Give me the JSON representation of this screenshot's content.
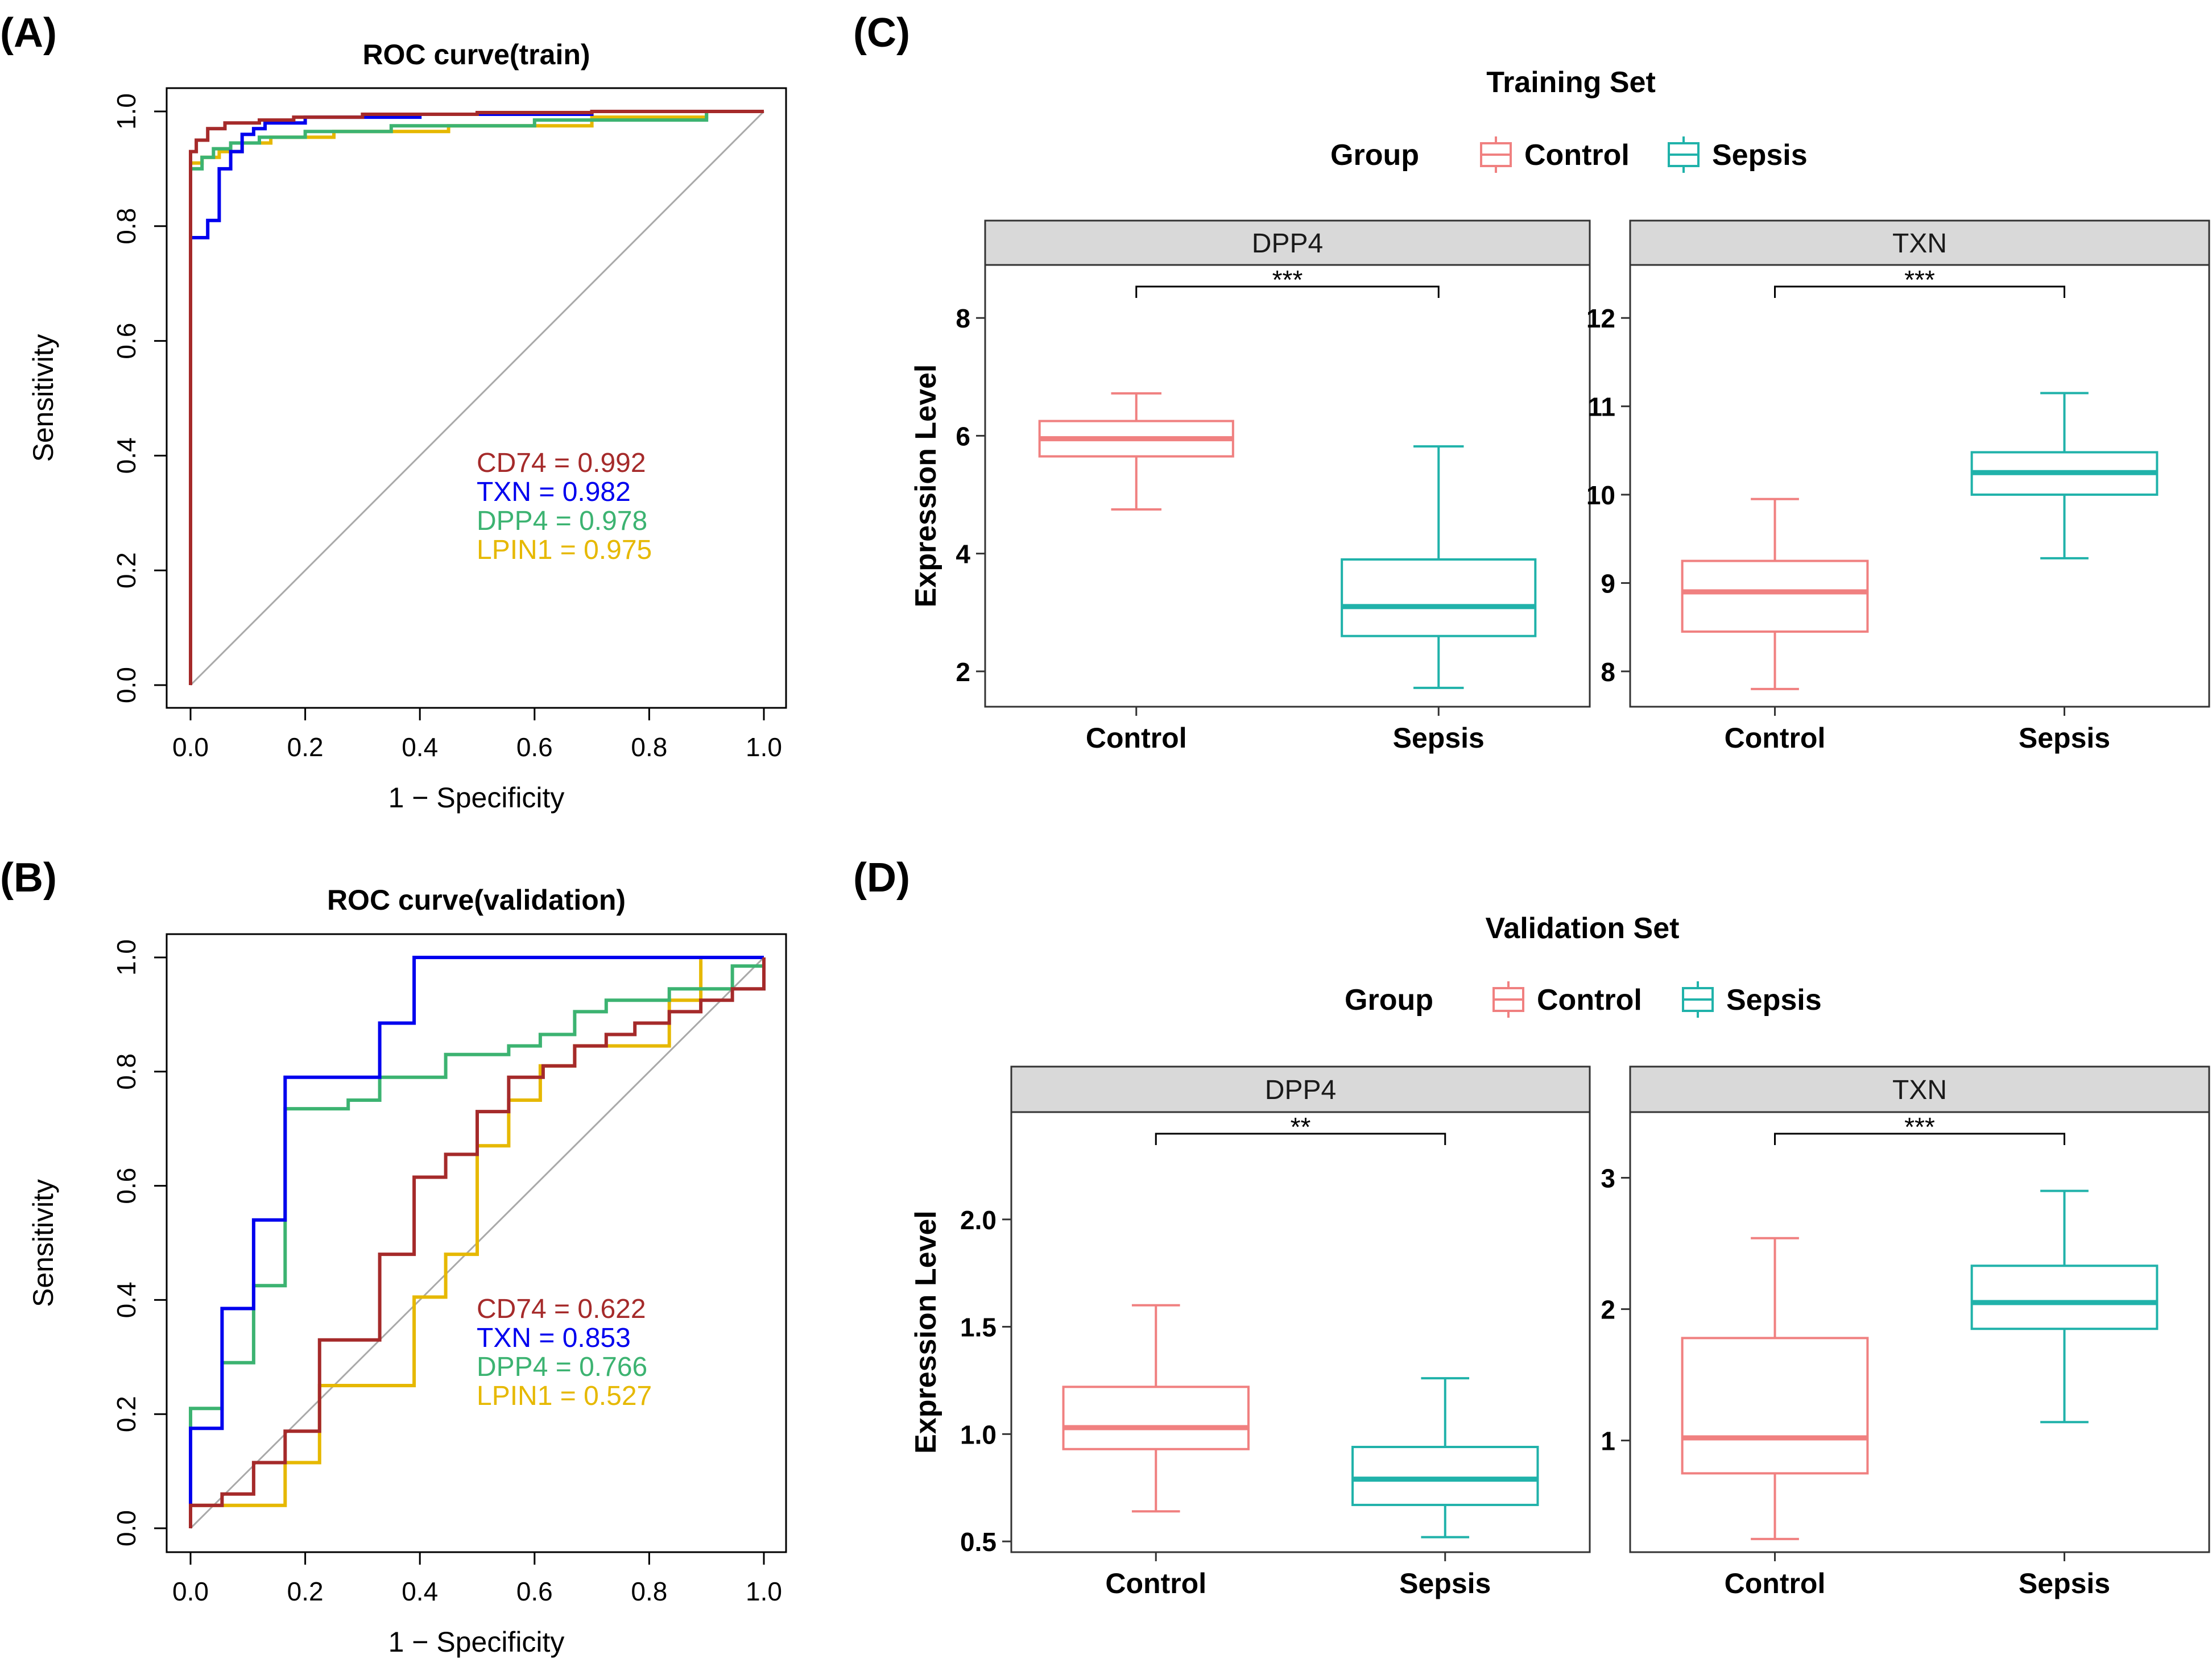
{
  "colors": {
    "cd74": "#a52a2a",
    "txn": "#0000ee",
    "dpp4": "#3cb371",
    "lpin1": "#e6b800",
    "control": "#f08080",
    "sepsis": "#20b2aa",
    "strip_bg": "#d9d9d9",
    "diagonal": "#a9a9a9"
  },
  "panels": {
    "A": "(A)",
    "B": "(B)",
    "C": "(C)",
    "D": "(D)"
  },
  "chart_data": [
    {
      "id": "A",
      "type": "line",
      "title": "ROC curve(train)",
      "xlabel": "1 − Specificity",
      "ylabel": "Sensitivity",
      "xlim": [
        0,
        1
      ],
      "ylim": [
        0,
        1
      ],
      "ticks": [
        "0.0",
        "0.2",
        "0.4",
        "0.6",
        "0.8",
        "1.0"
      ],
      "series": [
        {
          "name": "CD74",
          "label": "CD74 = 0.992",
          "color_key": "cd74",
          "x": [
            0,
            0,
            0.01,
            0.01,
            0.03,
            0.03,
            0.06,
            0.06,
            0.12,
            0.12,
            0.18,
            0.18,
            0.3,
            0.3,
            0.5,
            0.5,
            0.7,
            0.7,
            1
          ],
          "y": [
            0,
            0.93,
            0.93,
            0.95,
            0.95,
            0.97,
            0.97,
            0.98,
            0.98,
            0.985,
            0.985,
            0.99,
            0.99,
            0.995,
            0.995,
            0.998,
            0.998,
            1,
            1
          ]
        },
        {
          "name": "TXN",
          "label": "TXN = 0.982",
          "color_key": "txn",
          "x": [
            0,
            0,
            0.03,
            0.03,
            0.05,
            0.05,
            0.07,
            0.07,
            0.09,
            0.09,
            0.11,
            0.11,
            0.13,
            0.13,
            0.2,
            0.2,
            0.4,
            0.4,
            0.7,
            0.7,
            1
          ],
          "y": [
            0,
            0.78,
            0.78,
            0.81,
            0.81,
            0.9,
            0.9,
            0.93,
            0.93,
            0.96,
            0.96,
            0.97,
            0.97,
            0.98,
            0.98,
            0.99,
            0.99,
            0.995,
            0.995,
            1,
            1
          ]
        },
        {
          "name": "DPP4",
          "label": "DPP4 = 0.978",
          "color_key": "dpp4",
          "x": [
            0,
            0,
            0.02,
            0.02,
            0.04,
            0.04,
            0.07,
            0.07,
            0.12,
            0.12,
            0.2,
            0.2,
            0.35,
            0.35,
            0.6,
            0.6,
            0.9,
            0.9,
            1
          ],
          "y": [
            0,
            0.9,
            0.9,
            0.92,
            0.92,
            0.935,
            0.935,
            0.945,
            0.945,
            0.955,
            0.955,
            0.965,
            0.965,
            0.975,
            0.975,
            0.985,
            0.985,
            1,
            1
          ]
        },
        {
          "name": "LPIN1",
          "label": "LPIN1 = 0.975",
          "color_key": "lpin1",
          "x": [
            0,
            0,
            0.02,
            0.02,
            0.05,
            0.05,
            0.09,
            0.09,
            0.14,
            0.14,
            0.25,
            0.25,
            0.45,
            0.45,
            0.7,
            0.7,
            0.9,
            0.9,
            1
          ],
          "y": [
            0,
            0.91,
            0.91,
            0.92,
            0.92,
            0.93,
            0.93,
            0.945,
            0.945,
            0.955,
            0.955,
            0.965,
            0.965,
            0.975,
            0.975,
            0.99,
            0.99,
            1,
            1
          ]
        }
      ]
    },
    {
      "id": "B",
      "type": "line",
      "title": "ROC curve(validation)",
      "xlabel": "1 − Specificity",
      "ylabel": "Sensitivity",
      "xlim": [
        0,
        1
      ],
      "ylim": [
        0,
        1
      ],
      "ticks": [
        "0.0",
        "0.2",
        "0.4",
        "0.6",
        "0.8",
        "1.0"
      ],
      "series": [
        {
          "name": "CD74",
          "label": "CD74 = 0.622",
          "color_key": "cd74",
          "x": [
            0,
            0,
            0.055,
            0.055,
            0.11,
            0.11,
            0.165,
            0.165,
            0.225,
            0.225,
            0.275,
            0.275,
            0.33,
            0.33,
            0.39,
            0.39,
            0.445,
            0.445,
            0.5,
            0.5,
            0.555,
            0.555,
            0.615,
            0.615,
            0.67,
            0.67,
            0.725,
            0.725,
            0.775,
            0.775,
            0.835,
            0.835,
            0.89,
            0.89,
            0.945,
            0.945,
            1,
            1
          ],
          "y": [
            0,
            0.04,
            0.04,
            0.06,
            0.06,
            0.115,
            0.115,
            0.17,
            0.17,
            0.33,
            0.33,
            0.33,
            0.33,
            0.48,
            0.48,
            0.615,
            0.615,
            0.655,
            0.655,
            0.73,
            0.73,
            0.79,
            0.79,
            0.81,
            0.81,
            0.845,
            0.845,
            0.865,
            0.865,
            0.885,
            0.885,
            0.905,
            0.905,
            0.925,
            0.925,
            0.945,
            0.945,
            1
          ]
        },
        {
          "name": "TXN",
          "label": "TXN = 0.853",
          "color_key": "txn",
          "x": [
            0,
            0,
            0.055,
            0.055,
            0.11,
            0.11,
            0.165,
            0.165,
            0.33,
            0.33,
            0.39,
            0.39,
            0.89,
            0.89,
            1
          ],
          "y": [
            0,
            0.175,
            0.175,
            0.385,
            0.385,
            0.54,
            0.54,
            0.79,
            0.79,
            0.885,
            0.885,
            1,
            1,
            1,
            1
          ]
        },
        {
          "name": "DPP4",
          "label": "DPP4 = 0.766",
          "color_key": "dpp4",
          "x": [
            0,
            0,
            0.055,
            0.055,
            0.11,
            0.11,
            0.165,
            0.165,
            0.275,
            0.275,
            0.33,
            0.33,
            0.445,
            0.445,
            0.555,
            0.555,
            0.61,
            0.61,
            0.67,
            0.67,
            0.725,
            0.725,
            0.835,
            0.835,
            0.945,
            0.945,
            1,
            1
          ],
          "y": [
            0,
            0.21,
            0.21,
            0.29,
            0.29,
            0.425,
            0.425,
            0.735,
            0.735,
            0.75,
            0.75,
            0.79,
            0.79,
            0.83,
            0.83,
            0.845,
            0.845,
            0.865,
            0.865,
            0.905,
            0.905,
            0.925,
            0.925,
            0.945,
            0.945,
            0.985,
            0.985,
            1
          ]
        },
        {
          "name": "LPIN1",
          "label": "LPIN1 = 0.527",
          "color_key": "lpin1",
          "x": [
            0,
            0,
            0.055,
            0.055,
            0.165,
            0.165,
            0.225,
            0.225,
            0.39,
            0.39,
            0.445,
            0.445,
            0.5,
            0.5,
            0.555,
            0.555,
            0.61,
            0.61,
            0.67,
            0.67,
            0.835,
            0.835,
            0.89,
            0.89,
            1
          ],
          "y": [
            0,
            0.04,
            0.04,
            0.04,
            0.04,
            0.115,
            0.115,
            0.25,
            0.25,
            0.405,
            0.405,
            0.48,
            0.48,
            0.67,
            0.67,
            0.75,
            0.75,
            0.81,
            0.81,
            0.845,
            0.845,
            0.925,
            0.925,
            1,
            1
          ]
        }
      ]
    },
    {
      "id": "C",
      "type": "box",
      "title": "Training Set",
      "ylabel": "Expression Level",
      "legend_title": "Group",
      "groups": [
        "Control",
        "Sepsis"
      ],
      "facets": [
        {
          "strip": "DPP4",
          "ylim": [
            1.4,
            8.9
          ],
          "ticks": [
            2,
            4,
            6,
            8
          ],
          "signif": "***",
          "boxes": [
            {
              "group": "Control",
              "min": 4.75,
              "q1": 5.65,
              "median": 5.95,
              "q3": 6.25,
              "max": 6.72
            },
            {
              "group": "Sepsis",
              "min": 1.72,
              "q1": 2.6,
              "median": 3.1,
              "q3": 3.9,
              "max": 5.82
            }
          ]
        },
        {
          "strip": "TXN",
          "ylim": [
            7.6,
            12.6
          ],
          "ticks": [
            8,
            9,
            10,
            11,
            12
          ],
          "signif": "***",
          "boxes": [
            {
              "group": "Control",
              "min": 7.8,
              "q1": 8.45,
              "median": 8.9,
              "q3": 9.25,
              "max": 9.95
            },
            {
              "group": "Sepsis",
              "min": 9.28,
              "q1": 10.0,
              "median": 10.25,
              "q3": 10.48,
              "max": 11.15
            }
          ]
        }
      ]
    },
    {
      "id": "D",
      "type": "box",
      "title": "Validation Set",
      "ylabel": "Expression Level",
      "legend_title": "Group",
      "groups": [
        "Control",
        "Sepsis"
      ],
      "facets": [
        {
          "strip": "DPP4",
          "ylim": [
            0.45,
            2.5
          ],
          "ticks": [
            "0.5",
            "1.0",
            "1.5",
            "2.0"
          ],
          "signif": "**",
          "boxes": [
            {
              "group": "Control",
              "min": 0.64,
              "q1": 0.93,
              "median": 1.03,
              "q3": 1.22,
              "max": 1.6
            },
            {
              "group": "Sepsis",
              "min": 0.52,
              "q1": 0.67,
              "median": 0.79,
              "q3": 0.94,
              "max": 1.26
            }
          ]
        },
        {
          "strip": "TXN",
          "ylim": [
            0.15,
            3.5
          ],
          "ticks": [
            1,
            2,
            3
          ],
          "signif": "***",
          "boxes": [
            {
              "group": "Control",
              "min": 0.25,
              "q1": 0.75,
              "median": 1.02,
              "q3": 1.78,
              "max": 2.54
            },
            {
              "group": "Sepsis",
              "min": 1.14,
              "q1": 1.85,
              "median": 2.05,
              "q3": 2.33,
              "max": 2.9
            }
          ]
        }
      ]
    }
  ]
}
